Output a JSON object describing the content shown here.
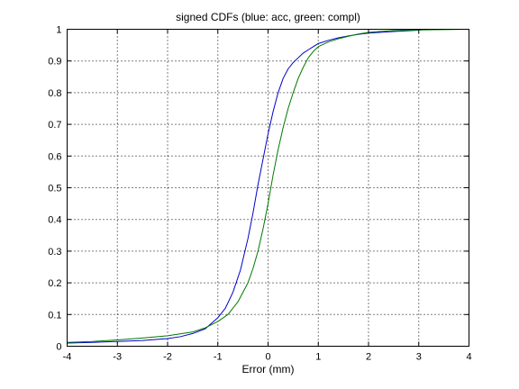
{
  "chart_data": {
    "type": "line",
    "title": "signed CDFs (blue: acc, green: compl)",
    "xlabel": "Error (mm)",
    "ylabel": "",
    "xlim": [
      -4,
      4
    ],
    "ylim": [
      0,
      1
    ],
    "xticks": [
      "-4",
      "-3",
      "-2",
      "-1",
      "0",
      "1",
      "2",
      "3",
      "4"
    ],
    "yticks": [
      "0",
      "0.1",
      "0.2",
      "0.3",
      "0.4",
      "0.5",
      "0.6",
      "0.7",
      "0.8",
      "0.9",
      "1"
    ],
    "grid": true,
    "grid_style": "dotted",
    "legend": false,
    "colors": {
      "acc": "#0000cc",
      "compl": "#007a00",
      "axes": "#000000",
      "grid": "#000000"
    },
    "series": [
      {
        "color_key": "acc",
        "x": [
          -4.0,
          -3.5,
          -3.0,
          -2.5,
          -2.0,
          -1.75,
          -1.5,
          -1.25,
          -1.0,
          -0.85,
          -0.7,
          -0.55,
          -0.4,
          -0.3,
          -0.2,
          -0.1,
          0.0,
          0.1,
          0.2,
          0.3,
          0.4,
          0.5,
          0.6,
          0.7,
          0.8,
          0.9,
          1.0,
          1.2,
          1.4,
          1.6,
          1.8,
          2.0,
          2.5,
          3.0,
          3.15
        ],
        "y": [
          0.01,
          0.012,
          0.015,
          0.018,
          0.024,
          0.03,
          0.04,
          0.055,
          0.09,
          0.12,
          0.17,
          0.24,
          0.34,
          0.42,
          0.51,
          0.59,
          0.67,
          0.74,
          0.8,
          0.845,
          0.875,
          0.895,
          0.91,
          0.925,
          0.935,
          0.945,
          0.955,
          0.965,
          0.973,
          0.979,
          0.984,
          0.988,
          0.993,
          0.997,
          1.0
        ]
      },
      {
        "color_key": "compl",
        "x": [
          -4.0,
          -3.5,
          -3.0,
          -2.5,
          -2.0,
          -1.5,
          -1.25,
          -1.0,
          -0.8,
          -0.6,
          -0.4,
          -0.3,
          -0.2,
          -0.1,
          0.0,
          0.1,
          0.2,
          0.3,
          0.4,
          0.5,
          0.6,
          0.7,
          0.8,
          0.9,
          1.0,
          1.2,
          1.4,
          1.6,
          1.8,
          2.0,
          2.2,
          2.5,
          3.0,
          3.5,
          4.0
        ],
        "y": [
          0.012,
          0.015,
          0.02,
          0.026,
          0.033,
          0.045,
          0.058,
          0.078,
          0.1,
          0.14,
          0.2,
          0.245,
          0.3,
          0.37,
          0.45,
          0.54,
          0.62,
          0.69,
          0.75,
          0.8,
          0.845,
          0.88,
          0.91,
          0.93,
          0.945,
          0.96,
          0.97,
          0.978,
          0.985,
          0.99,
          0.993,
          0.996,
          0.998,
          0.999,
          1.0
        ]
      }
    ]
  }
}
